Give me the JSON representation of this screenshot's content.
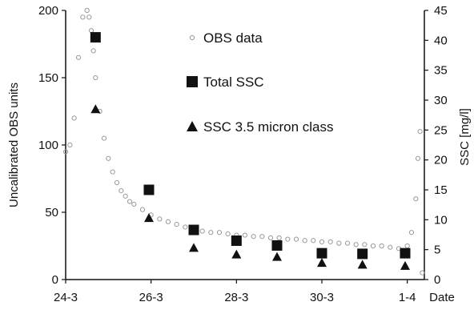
{
  "chart_data": {
    "type": "scatter",
    "title": "",
    "xlabel": "Date",
    "ylabel_left": "Uncalibrated OBS units",
    "ylabel_right": "SSC [mg/l]",
    "x_unit": "day (day 0 = 24-3)",
    "x_ticks": [
      {
        "x": 0,
        "label": "24-3"
      },
      {
        "x": 2,
        "label": "26-3"
      },
      {
        "x": 4,
        "label": "28-3"
      },
      {
        "x": 6,
        "label": "30-3"
      },
      {
        "x": 8,
        "label": "1-4"
      }
    ],
    "xlim": [
      0,
      8.4
    ],
    "ylim_left": [
      0,
      200
    ],
    "ylim_right": [
      0,
      45
    ],
    "left_ticks": [
      0,
      50,
      100,
      150,
      200
    ],
    "right_ticks": [
      0,
      5,
      10,
      15,
      20,
      25,
      30,
      35,
      40,
      45
    ],
    "grid": false,
    "legend_position": "top-center",
    "series": [
      {
        "name": "OBS data",
        "marker": "open-circle",
        "axis": "left",
        "color": "#9a9a9a",
        "x": [
          0.0,
          0.1,
          0.2,
          0.3,
          0.4,
          0.5,
          0.55,
          0.6,
          0.65,
          0.7,
          0.8,
          0.9,
          1.0,
          1.1,
          1.2,
          1.3,
          1.4,
          1.5,
          1.6,
          1.8,
          2.0,
          2.2,
          2.4,
          2.6,
          2.8,
          3.0,
          3.2,
          3.4,
          3.6,
          3.8,
          4.0,
          4.2,
          4.4,
          4.6,
          4.8,
          5.0,
          5.2,
          5.4,
          5.6,
          5.8,
          6.0,
          6.2,
          6.4,
          6.6,
          6.8,
          7.0,
          7.2,
          7.4,
          7.6,
          7.8,
          8.0,
          8.1,
          8.2,
          8.25,
          8.3,
          8.35
        ],
        "values": [
          95,
          100,
          120,
          165,
          195,
          200,
          195,
          185,
          170,
          150,
          125,
          105,
          90,
          80,
          72,
          66,
          62,
          58,
          56,
          52,
          48,
          45,
          43,
          41,
          39,
          38,
          36,
          35,
          35,
          34,
          33,
          33,
          32,
          32,
          31,
          31,
          30,
          30,
          29,
          29,
          28,
          28,
          27,
          27,
          26,
          26,
          25,
          25,
          24,
          23,
          25,
          35,
          60,
          90,
          110,
          5
        ]
      },
      {
        "name": "Total SSC",
        "marker": "filled-square",
        "axis": "right",
        "color": "#111111",
        "x": [
          0.7,
          1.95,
          3.0,
          4.0,
          4.95,
          6.0,
          6.95,
          7.95
        ],
        "values": [
          40.5,
          15.0,
          8.3,
          6.5,
          5.7,
          4.4,
          4.3,
          4.4
        ]
      },
      {
        "name": "SSC 3.5 micron class",
        "marker": "filled-triangle",
        "axis": "right",
        "color": "#111111",
        "x": [
          0.7,
          1.95,
          3.0,
          4.0,
          4.95,
          6.0,
          6.95,
          7.95
        ],
        "values": [
          28.5,
          10.3,
          5.3,
          4.2,
          3.8,
          2.8,
          2.5,
          2.3
        ]
      }
    ]
  }
}
